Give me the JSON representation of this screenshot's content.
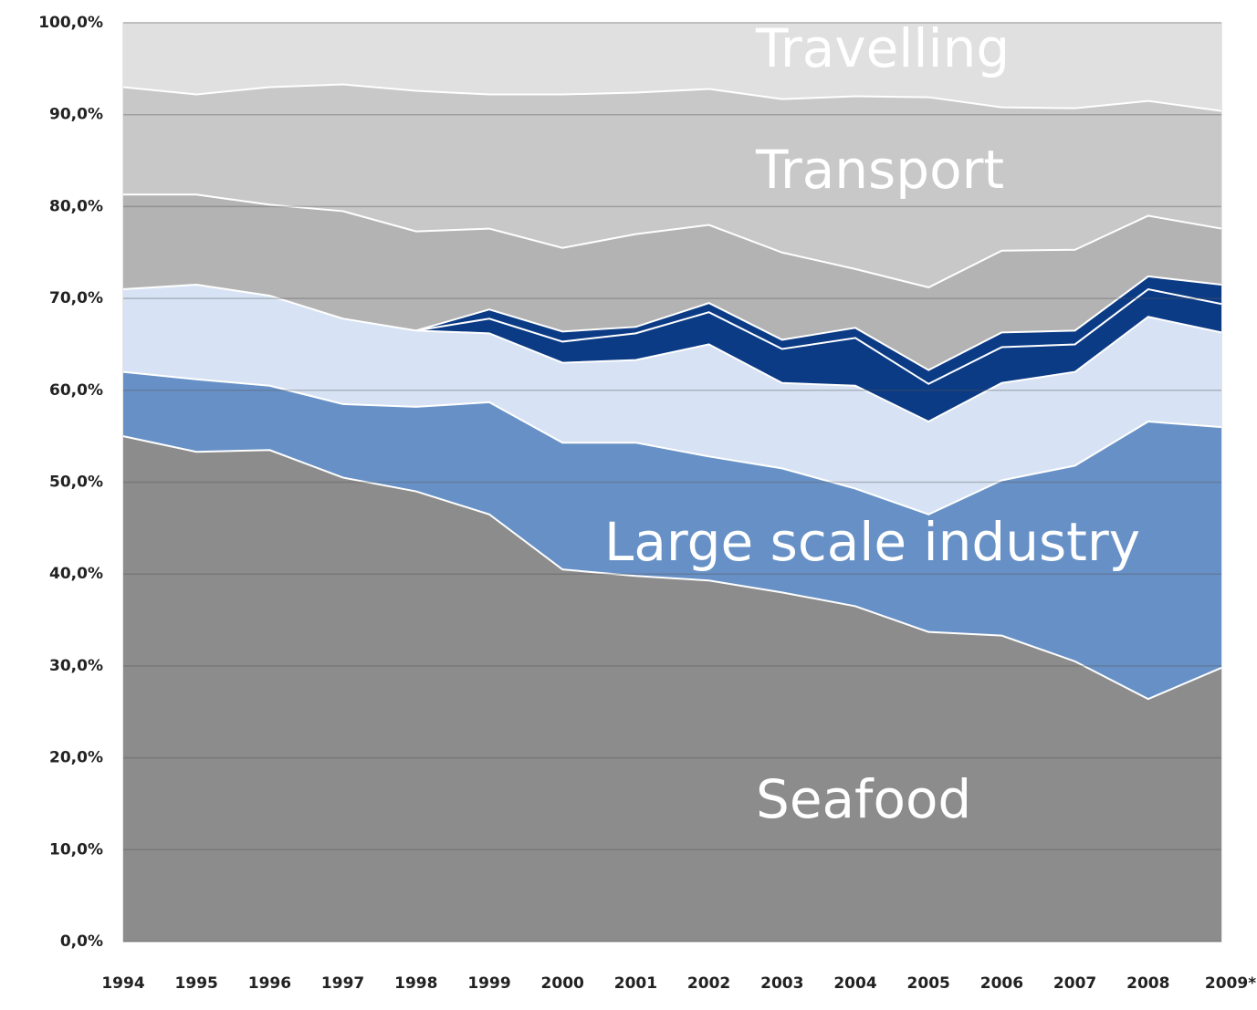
{
  "chart_data": {
    "type": "stacked-area",
    "categories": [
      "1994",
      "1995",
      "1996",
      "1997",
      "1998",
      "1999",
      "2000",
      "2001",
      "2002",
      "2003",
      "2004",
      "2005",
      "2006",
      "2007",
      "2008",
      "2009*"
    ],
    "series": [
      {
        "name": "Seafood",
        "color": "#8c8c8c",
        "values": [
          55,
          53.3,
          53.5,
          50.5,
          49,
          46.5,
          40.5,
          39.8,
          39.3,
          38,
          36.5,
          33.7,
          33.3,
          30.5,
          26.4,
          29.8
        ]
      },
      {
        "name": "Large scale industry",
        "color": "#6791c6",
        "values": [
          7,
          7.9,
          7,
          8,
          9.2,
          12.2,
          13.8,
          14.5,
          13.5,
          13.5,
          12.8,
          12.8,
          16.9,
          21.3,
          30.2,
          26.2
        ]
      },
      {
        "color": "#d7e3f4",
        "values": [
          9,
          10.3,
          9.8,
          9.3,
          8.3,
          7.5,
          8.7,
          9,
          12.2,
          9.3,
          11.2,
          10.1,
          10.6,
          10.2,
          11.4,
          10.3
        ]
      },
      {
        "color": "#0b3b85",
        "values": [
          null,
          null,
          null,
          null,
          0,
          1.6,
          2.3,
          2.9,
          3.5,
          3.7,
          5.2,
          4.1,
          3.9,
          3,
          3,
          3.1
        ]
      },
      {
        "color": "#0b3b85",
        "values": [
          null,
          null,
          null,
          null,
          0,
          1,
          1.1,
          0.7,
          1,
          1,
          1.1,
          1.5,
          1.6,
          1.5,
          1.4,
          2.1
        ]
      },
      {
        "color": "#b3b3b3",
        "values": [
          10.3,
          9.8,
          9.9,
          11.7,
          10.8,
          8.8,
          9.1,
          10.1,
          8.5,
          9.5,
          6.4,
          9,
          8.9,
          8.8,
          6.6,
          6.1
        ]
      },
      {
        "name": "Transport",
        "color": "#c8c8c8",
        "values": [
          11.7,
          10.9,
          12.8,
          13.8,
          15.3,
          14.6,
          16.7,
          15.4,
          14.8,
          16.7,
          18.8,
          20.7,
          15.6,
          15.4,
          12.5,
          12.8
        ]
      },
      {
        "name": "Travelling",
        "color": "#e0e0e0",
        "values": [
          7,
          7.8,
          7,
          6.7,
          7.4,
          7.8,
          7.8,
          7.6,
          7.2,
          8.3,
          8,
          8.1,
          9.2,
          9.3,
          8.5,
          9.6
        ]
      }
    ],
    "ylim": [
      0,
      100
    ],
    "yticks": [
      {
        "value": 0,
        "label": "0,0%"
      },
      {
        "value": 10,
        "label": "10,0%"
      },
      {
        "value": 20,
        "label": "20,0%"
      },
      {
        "value": 30,
        "label": "30,0%"
      },
      {
        "value": 40,
        "label": "40,0%"
      },
      {
        "value": 50,
        "label": "50,0%"
      },
      {
        "value": 60,
        "label": "60,0%"
      },
      {
        "value": 70,
        "label": "70,0%"
      },
      {
        "value": 80,
        "label": "80,0%"
      },
      {
        "value": 90,
        "label": "90,0%"
      },
      {
        "value": 100,
        "label": "100,0%"
      }
    ],
    "grid": true
  }
}
